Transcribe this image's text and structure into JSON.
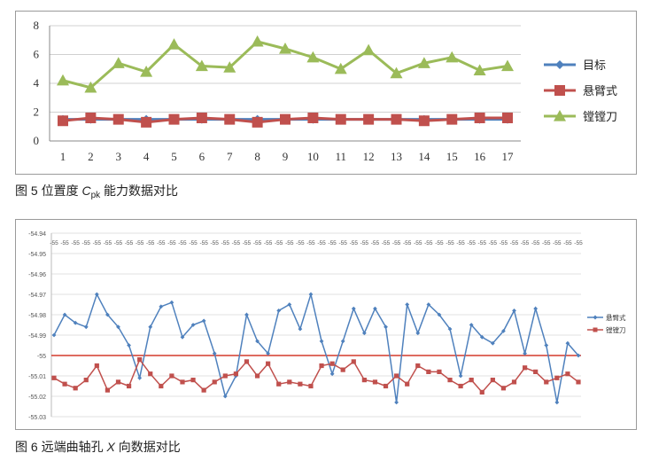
{
  "captions": {
    "fig5_prefix": "图 5  位置度 ",
    "fig5_var": "C",
    "fig5_sub": "pk",
    "fig5_suffix": " 能力数据对比",
    "fig6_prefix": "图 6  远端曲轴孔 ",
    "fig6_var": "X",
    "fig6_suffix": " 向数据对比"
  },
  "chart_data": [
    {
      "type": "line",
      "x": [
        1,
        2,
        3,
        4,
        5,
        6,
        7,
        8,
        9,
        10,
        11,
        12,
        13,
        14,
        15,
        16,
        17
      ],
      "ylim": [
        0,
        8
      ],
      "yticks": [
        "0",
        "2",
        "4",
        "6",
        "8"
      ],
      "grid": true,
      "legend_position": "right",
      "series": [
        {
          "name": "目标",
          "color": "#4f81bd",
          "marker": "diamond",
          "values": [
            1.5,
            1.5,
            1.5,
            1.5,
            1.5,
            1.5,
            1.5,
            1.5,
            1.5,
            1.5,
            1.5,
            1.5,
            1.5,
            1.5,
            1.5,
            1.5,
            1.5
          ]
        },
        {
          "name": "悬臂式",
          "color": "#c0504d",
          "marker": "square",
          "values": [
            1.4,
            1.6,
            1.5,
            1.3,
            1.5,
            1.6,
            1.5,
            1.3,
            1.5,
            1.6,
            1.5,
            1.5,
            1.5,
            1.4,
            1.5,
            1.6,
            1.6
          ]
        },
        {
          "name": "镗镗刀",
          "color": "#9bbb59",
          "marker": "triangle",
          "values": [
            4.2,
            3.7,
            5.4,
            4.8,
            6.7,
            5.2,
            5.1,
            6.9,
            6.4,
            5.8,
            5.0,
            6.3,
            4.7,
            5.4,
            5.8,
            4.9,
            5.2
          ]
        }
      ]
    },
    {
      "type": "line",
      "n_points": 50,
      "ylim": [
        -55.03,
        -54.94
      ],
      "yticks": [
        "-54.94",
        "-54.95",
        "-54.96",
        "-54.97",
        "-54.98",
        "-54.99",
        "-55",
        "-55.01",
        "-55.02",
        "-55.03"
      ],
      "xtick_labels": [
        "-55",
        "-55",
        "-55",
        "-55",
        "-55",
        "-55",
        "-55",
        "-55",
        "-55",
        "-55",
        "-55",
        "-55",
        "-55",
        "-55",
        "-55",
        "-55",
        "-55",
        "-55",
        "-55",
        "-55",
        "-55",
        "-55",
        "-55",
        "-55",
        "-55",
        "-55",
        "-55",
        "-55",
        "-55",
        "-55",
        "-55",
        "-55",
        "-55",
        "-55",
        "-55",
        "-55",
        "-55",
        "-55",
        "-55",
        "-55",
        "-55",
        "-55",
        "-55",
        "-55",
        "-55",
        "-55",
        "-55",
        "-55",
        "-55",
        "-55"
      ],
      "target_line": -55.0,
      "target_color": "#d43a2c",
      "grid": true,
      "legend_position": "right",
      "series": [
        {
          "name": "悬臂式",
          "color": "#4f81bd",
          "marker": "diamond",
          "values": [
            -54.99,
            -54.98,
            -54.984,
            -54.986,
            -54.97,
            -54.98,
            -54.986,
            -54.995,
            -55.011,
            -54.986,
            -54.976,
            -54.974,
            -54.991,
            -54.985,
            -54.983,
            -54.999,
            -55.02,
            -55.01,
            -54.98,
            -54.993,
            -54.999,
            -54.978,
            -54.975,
            -54.987,
            -54.97,
            -54.993,
            -55.009,
            -54.993,
            -54.977,
            -54.989,
            -54.977,
            -54.986,
            -55.023,
            -54.975,
            -54.989,
            -54.975,
            -54.98,
            -54.987,
            -55.01,
            -54.985,
            -54.991,
            -54.994,
            -54.988,
            -54.978,
            -54.999,
            -54.977,
            -54.995,
            -55.023,
            -54.994,
            -55.0
          ]
        },
        {
          "name": "镗镗刀",
          "color": "#c0504d",
          "marker": "square",
          "values": [
            -55.011,
            -55.014,
            -55.016,
            -55.012,
            -55.005,
            -55.017,
            -55.013,
            -55.015,
            -55.002,
            -55.009,
            -55.015,
            -55.01,
            -55.013,
            -55.012,
            -55.017,
            -55.013,
            -55.01,
            -55.009,
            -55.003,
            -55.01,
            -55.004,
            -55.014,
            -55.013,
            -55.014,
            -55.015,
            -55.005,
            -55.004,
            -55.007,
            -55.003,
            -55.012,
            -55.013,
            -55.015,
            -55.01,
            -55.014,
            -55.005,
            -55.008,
            -55.008,
            -55.012,
            -55.015,
            -55.012,
            -55.018,
            -55.012,
            -55.016,
            -55.013,
            -55.006,
            -55.008,
            -55.013,
            -55.011,
            -55.009,
            -55.013
          ]
        }
      ]
    }
  ]
}
